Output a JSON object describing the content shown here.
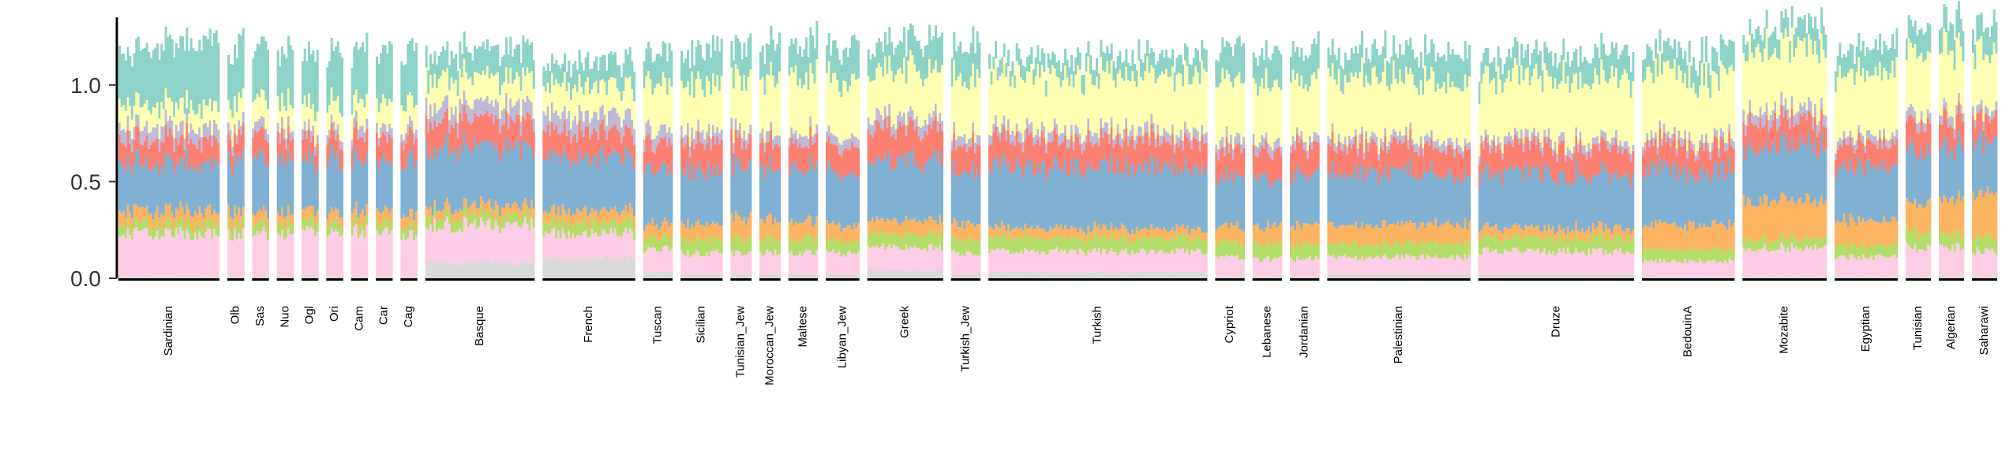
{
  "chart_data": {
    "type": "bar",
    "stacked": true,
    "title": "",
    "xlabel": "",
    "ylabel": "",
    "ylim": [
      0,
      1.35
    ],
    "yticks": [
      0.0,
      0.5,
      1.0
    ],
    "ytick_labels": [
      "0.0",
      "0.5",
      "1.0"
    ],
    "grid": false,
    "legend": "none",
    "component_colors": [
      "#D9D9D9",
      "#FCCDE5",
      "#B3DE69",
      "#FDB462",
      "#80B1D3",
      "#FB8072",
      "#BEBADA",
      "#FFFFB3",
      "#8DD3C7"
    ],
    "components": [
      "k1",
      "k2",
      "k3",
      "k4",
      "k5",
      "k6",
      "k7",
      "k8",
      "k9"
    ],
    "groups": [
      {
        "label": "Sardinian",
        "n": 48,
        "values": [
          0.01,
          0.22,
          0.05,
          0.07,
          0.25,
          0.12,
          0.07,
          0.11,
          0.31
        ]
      },
      {
        "label": "Olb",
        "n": 8,
        "values": [
          0.01,
          0.22,
          0.05,
          0.07,
          0.26,
          0.12,
          0.05,
          0.13,
          0.28
        ]
      },
      {
        "label": "Sas",
        "n": 8,
        "values": [
          0.01,
          0.22,
          0.05,
          0.06,
          0.27,
          0.12,
          0.05,
          0.13,
          0.27
        ]
      },
      {
        "label": "Nuo",
        "n": 8,
        "values": [
          0.01,
          0.22,
          0.05,
          0.06,
          0.28,
          0.11,
          0.05,
          0.13,
          0.27
        ]
      },
      {
        "label": "Ogl",
        "n": 8,
        "values": [
          0.01,
          0.23,
          0.05,
          0.06,
          0.27,
          0.11,
          0.05,
          0.13,
          0.27
        ]
      },
      {
        "label": "Ori",
        "n": 8,
        "values": [
          0.01,
          0.22,
          0.05,
          0.06,
          0.28,
          0.11,
          0.05,
          0.13,
          0.27
        ]
      },
      {
        "label": "Cam",
        "n": 8,
        "values": [
          0.01,
          0.23,
          0.05,
          0.06,
          0.26,
          0.12,
          0.05,
          0.13,
          0.27
        ]
      },
      {
        "label": "Car",
        "n": 8,
        "values": [
          0.01,
          0.23,
          0.05,
          0.06,
          0.26,
          0.12,
          0.05,
          0.13,
          0.27
        ]
      },
      {
        "label": "Cag",
        "n": 8,
        "values": [
          0.01,
          0.22,
          0.05,
          0.06,
          0.27,
          0.12,
          0.05,
          0.13,
          0.27
        ]
      },
      {
        "label": "Basque",
        "n": 52,
        "values": [
          0.08,
          0.2,
          0.05,
          0.05,
          0.3,
          0.14,
          0.08,
          0.14,
          0.14
        ]
      },
      {
        "label": "French",
        "n": 44,
        "values": [
          0.1,
          0.13,
          0.06,
          0.06,
          0.28,
          0.13,
          0.09,
          0.15,
          0.12
        ]
      },
      {
        "label": "Tuscan",
        "n": 14,
        "values": [
          0.03,
          0.12,
          0.06,
          0.07,
          0.28,
          0.13,
          0.07,
          0.23,
          0.16
        ]
      },
      {
        "label": "Sicilian",
        "n": 20,
        "values": [
          0.02,
          0.11,
          0.07,
          0.08,
          0.28,
          0.14,
          0.06,
          0.25,
          0.17
        ]
      },
      {
        "label": "Tunisian_Jew",
        "n": 10,
        "values": [
          0.02,
          0.11,
          0.07,
          0.11,
          0.26,
          0.13,
          0.05,
          0.28,
          0.17
        ]
      },
      {
        "label": "Moroccan_Jew",
        "n": 10,
        "values": [
          0.02,
          0.11,
          0.07,
          0.1,
          0.27,
          0.13,
          0.05,
          0.29,
          0.17
        ]
      },
      {
        "label": "Maltese",
        "n": 14,
        "values": [
          0.02,
          0.11,
          0.07,
          0.09,
          0.27,
          0.13,
          0.05,
          0.29,
          0.17
        ]
      },
      {
        "label": "Libyan_Jew",
        "n": 16,
        "values": [
          0.02,
          0.11,
          0.06,
          0.08,
          0.28,
          0.14,
          0.05,
          0.3,
          0.17
        ]
      },
      {
        "label": "Greek",
        "n": 36,
        "values": [
          0.04,
          0.12,
          0.07,
          0.07,
          0.31,
          0.16,
          0.06,
          0.25,
          0.15
        ]
      },
      {
        "label": "Turkish_Jew",
        "n": 14,
        "values": [
          0.02,
          0.11,
          0.07,
          0.08,
          0.28,
          0.14,
          0.05,
          0.29,
          0.17
        ]
      },
      {
        "label": "Turkish",
        "n": 104,
        "values": [
          0.03,
          0.11,
          0.07,
          0.05,
          0.32,
          0.14,
          0.05,
          0.29,
          0.09
        ]
      },
      {
        "label": "Cypriot",
        "n": 14,
        "values": [
          0.01,
          0.1,
          0.08,
          0.08,
          0.25,
          0.14,
          0.05,
          0.31,
          0.17
        ]
      },
      {
        "label": "Lebanese",
        "n": 14,
        "values": [
          0.01,
          0.09,
          0.08,
          0.09,
          0.25,
          0.14,
          0.05,
          0.3,
          0.16
        ]
      },
      {
        "label": "Jordanian",
        "n": 14,
        "values": [
          0.01,
          0.09,
          0.08,
          0.1,
          0.26,
          0.14,
          0.04,
          0.3,
          0.16
        ]
      },
      {
        "label": "Palestinian",
        "n": 68,
        "values": [
          0.02,
          0.09,
          0.07,
          0.1,
          0.27,
          0.14,
          0.04,
          0.31,
          0.14
        ]
      },
      {
        "label": "Druze",
        "n": 74,
        "values": [
          0.02,
          0.12,
          0.07,
          0.05,
          0.28,
          0.14,
          0.04,
          0.32,
          0.12
        ]
      },
      {
        "label": "BedouinA",
        "n": 44,
        "values": [
          0.01,
          0.08,
          0.06,
          0.13,
          0.28,
          0.13,
          0.04,
          0.33,
          0.12
        ]
      },
      {
        "label": "Mozabite",
        "n": 40,
        "values": [
          0.01,
          0.15,
          0.05,
          0.2,
          0.28,
          0.13,
          0.06,
          0.33,
          0.11
        ]
      },
      {
        "label": "Egyptian",
        "n": 30,
        "values": [
          0.01,
          0.1,
          0.06,
          0.13,
          0.27,
          0.12,
          0.04,
          0.32,
          0.13
        ]
      },
      {
        "label": "Tunisian",
        "n": 12,
        "values": [
          0.01,
          0.15,
          0.08,
          0.14,
          0.28,
          0.14,
          0.05,
          0.31,
          0.13
        ]
      },
      {
        "label": "Algerian",
        "n": 12,
        "values": [
          0.01,
          0.15,
          0.07,
          0.18,
          0.27,
          0.13,
          0.05,
          0.31,
          0.14
        ]
      },
      {
        "label": "Saharawi",
        "n": 12,
        "values": [
          0.01,
          0.13,
          0.07,
          0.23,
          0.26,
          0.12,
          0.04,
          0.3,
          0.14
        ]
      }
    ]
  }
}
